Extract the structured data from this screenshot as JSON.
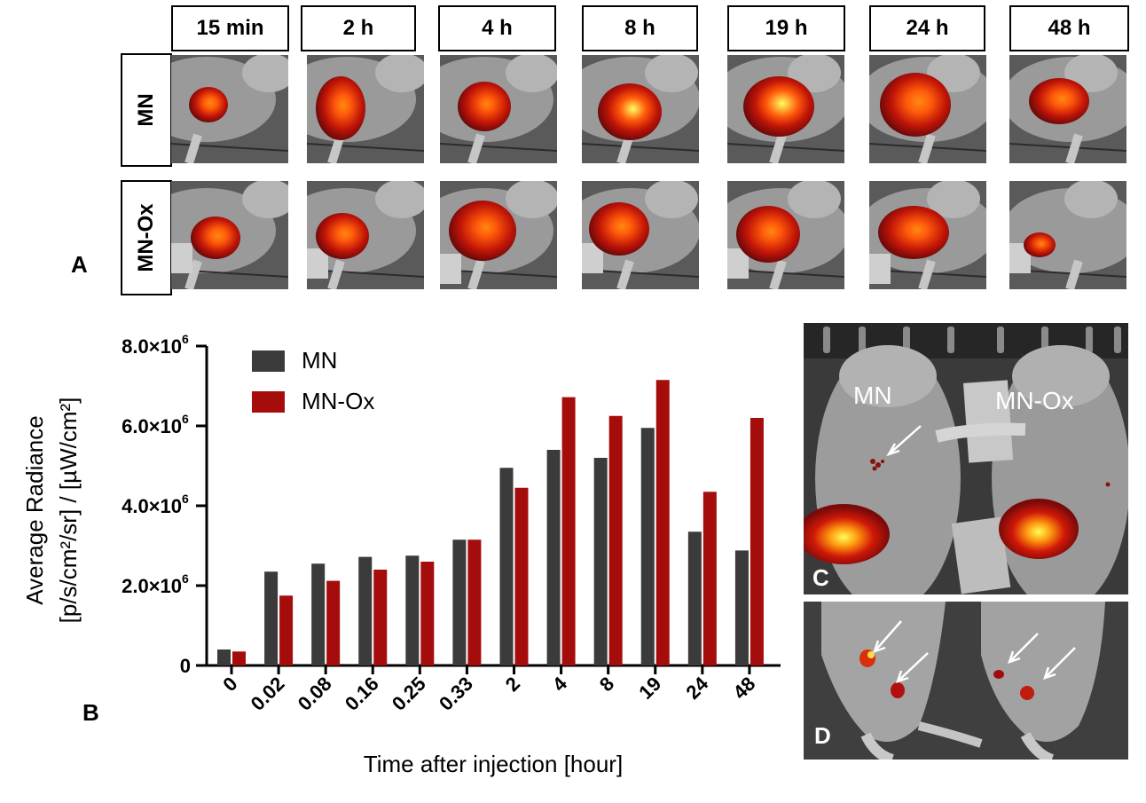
{
  "panel_a": {
    "time_labels": [
      "15 min",
      "2 h",
      "4 h",
      "8 h",
      "19 h",
      "24 h",
      "48 h"
    ],
    "row_labels": [
      "MN",
      "MN-Ox"
    ],
    "letter": "A"
  },
  "chart_data": {
    "type": "bar",
    "categories": [
      "0",
      "0.02",
      "0.08",
      "0.16",
      "0.25",
      "0.33",
      "2",
      "4",
      "8",
      "19",
      "24",
      "48"
    ],
    "series": [
      {
        "name": "MN",
        "color": "#3b3b3b",
        "values": [
          0.4,
          2.35,
          2.55,
          2.72,
          2.75,
          3.15,
          4.95,
          5.4,
          5.2,
          5.95,
          3.35,
          2.88
        ]
      },
      {
        "name": "MN-Ox",
        "color": "#a50d0d",
        "values": [
          0.35,
          1.75,
          2.12,
          2.4,
          2.6,
          3.15,
          4.45,
          6.72,
          6.25,
          7.15,
          4.35,
          6.2
        ]
      }
    ],
    "value_scale": "×10^6",
    "ylim": [
      0,
      8
    ],
    "yticks": [
      0,
      2,
      4,
      6,
      8
    ],
    "ytick_labels": [
      "0",
      "2.0×10",
      "4.0×10",
      "6.0×10",
      "8.0×10"
    ],
    "ytick_exponent": "6",
    "ylabel_line1": "Average  Radiance",
    "ylabel_line2": "[p/s/cm²/sr] / [µW/cm²]",
    "xlabel": "Time after injection [hour]",
    "legend_position": "top-left",
    "letter": "B"
  },
  "panel_c": {
    "label_left": "MN",
    "label_right": "MN-Ox",
    "letter": "C"
  },
  "panel_d": {
    "letter": "D"
  }
}
